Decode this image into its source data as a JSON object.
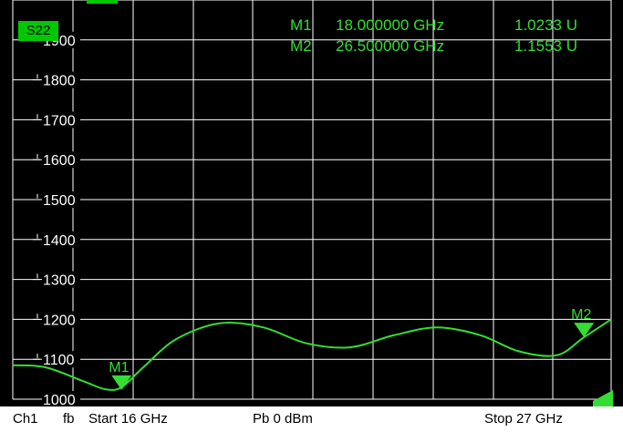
{
  "colors": {
    "background": "#000000",
    "grid": "#ffffff",
    "trace": "#33dd33",
    "trace_label_bg": "#00c800",
    "statusbar_bg": "#ffffff",
    "statusbar_text": "#000000"
  },
  "trace_label": "S22",
  "markers": [
    {
      "name": "M1",
      "freq": "18.000000 GHz",
      "value": "1.0233 U"
    },
    {
      "name": "M2",
      "freq": "26.500000 GHz",
      "value": "1.1553 U"
    }
  ],
  "statusbar": {
    "channel": "Ch1",
    "mode": "fb",
    "start": "Start  16 GHz",
    "power": "Pb   0 dBm",
    "stop": "Stop  27 GHz"
  },
  "chart_data": {
    "type": "line",
    "trace": "S22",
    "x_start_ghz": 16,
    "x_stop_ghz": 27,
    "ylim": [
      1000,
      2000
    ],
    "y_ticks": [
      "1900",
      "1800",
      "1700",
      "1600",
      "1500",
      "1400",
      "1300",
      "1200",
      "1100",
      "1000"
    ],
    "y_tick_values": [
      1900,
      1800,
      1700,
      1600,
      1500,
      1400,
      1300,
      1200,
      1100,
      1000
    ],
    "grid": true,
    "series": [
      {
        "x": [
          16.0,
          16.6,
          17.3,
          17.7,
          18.0,
          18.4,
          19.0,
          19.8,
          20.6,
          21.4,
          22.2,
          23.0,
          23.8,
          24.6,
          25.3,
          26.0,
          26.5,
          27.0
        ],
        "y": [
          1085,
          1080,
          1045,
          1025,
          1030,
          1080,
          1150,
          1190,
          1180,
          1140,
          1130,
          1160,
          1180,
          1160,
          1120,
          1110,
          1155,
          1200
        ]
      }
    ],
    "markers": [
      {
        "label": "M1",
        "x": 18.0,
        "y": 1023
      },
      {
        "label": "M2",
        "x": 26.5,
        "y": 1155
      }
    ]
  }
}
